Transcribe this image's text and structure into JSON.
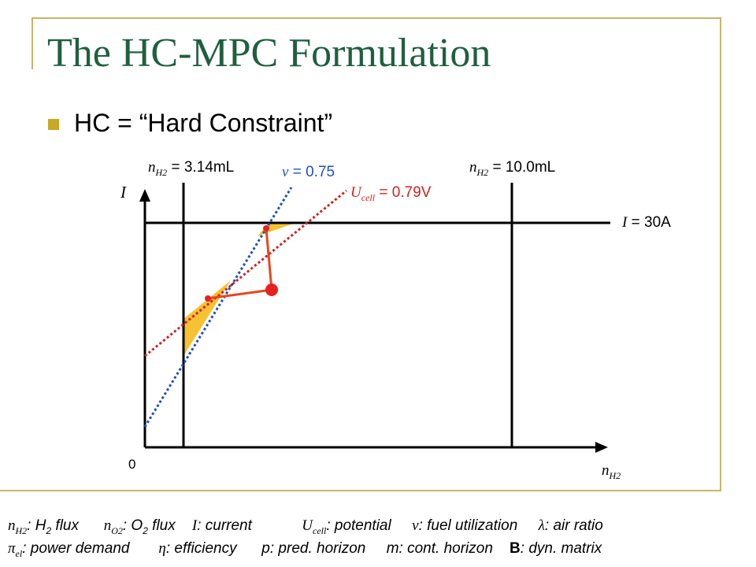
{
  "slide": {
    "title": "The HC-MPC Formulation",
    "bullet": "HC = “Hard Constraint”"
  },
  "diagram": {
    "nh2_min": {
      "sym": "n",
      "sub": "H2",
      "eq": "=",
      "value": "3.14mL"
    },
    "nh2_max": {
      "sym": "n",
      "sub": "H2",
      "eq": "=",
      "value": "10.0mL"
    },
    "nu": {
      "sym": "ν",
      "eq": "=",
      "value": "0.75"
    },
    "ucell": {
      "sym": "U",
      "sub": "cell",
      "eq": "=",
      "value": "0.79V"
    },
    "current": {
      "sym": "I",
      "eq": "=",
      "value": "30A"
    },
    "y_axis_label": "I",
    "x_axis_label": {
      "sym": "n",
      "sub": "H2"
    },
    "origin_label": "0",
    "colors": {
      "blue_line": "#1f4fbf",
      "red_line": "#d42020",
      "region_fill": "#f6c232",
      "path": "#e8461e"
    }
  },
  "legend": {
    "line1": [
      {
        "sym": "n",
        "sub": "H2",
        "text": ": H",
        "sub2": "2",
        "text2": " flux"
      },
      {
        "sym": "n",
        "sub": "O2",
        "text": ": O",
        "sub2": "2",
        "text2": " flux"
      },
      {
        "sym": "I",
        "text": ": current"
      },
      {
        "sym": "U",
        "sub": "cell",
        "text": ": potential"
      },
      {
        "sym": "ν",
        "text": ": fuel utilization"
      },
      {
        "sym": "λ",
        "text": ": air ratio"
      }
    ],
    "line2": [
      {
        "sym": "π",
        "sub": "el",
        "text": ": power demand"
      },
      {
        "sym": "η",
        "text": ": efficiency"
      },
      {
        "text": "p: pred. horizon"
      },
      {
        "text": "m: cont. horizon"
      },
      {
        "bold": "B",
        "text": ": dyn. matrix"
      }
    ]
  }
}
